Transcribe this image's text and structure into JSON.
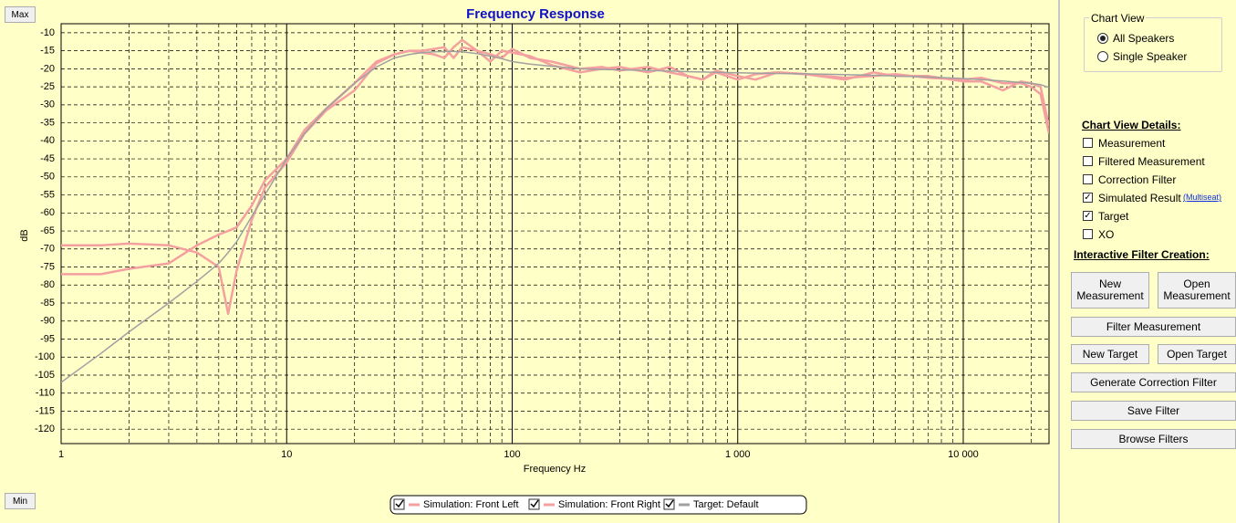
{
  "chart_data": {
    "type": "line",
    "title": "Frequency Response",
    "x_label": "Frequency Hz",
    "y_label": "dB",
    "x_scale": "log",
    "xlim": [
      1,
      24000
    ],
    "ylim": [
      -124,
      -7.5
    ],
    "xticks": [
      1,
      10,
      100,
      {
        "value": 1000,
        "label": "1 000"
      },
      {
        "value": 10000,
        "label": "10 000"
      }
    ],
    "x_minor_ticks": [
      2,
      3,
      4,
      5,
      6,
      7,
      8,
      9,
      20,
      30,
      40,
      50,
      60,
      70,
      80,
      90,
      200,
      300,
      400,
      500,
      600,
      700,
      800,
      900,
      2000,
      3000,
      4000,
      5000,
      6000,
      7000,
      8000,
      9000,
      20000
    ],
    "yticks": [
      -10,
      -15,
      -20,
      -25,
      -30,
      -35,
      -40,
      -45,
      -50,
      -55,
      -60,
      -65,
      -70,
      -75,
      -80,
      -85,
      -90,
      -95,
      -100,
      -105,
      -110,
      -115,
      -120
    ],
    "grid": true,
    "x": [
      1,
      1.5,
      2,
      3,
      4,
      5,
      5.5,
      6,
      7,
      8,
      10,
      12,
      15,
      20,
      25,
      30,
      35,
      40,
      45,
      50,
      55,
      60,
      70,
      80,
      90,
      100,
      120,
      150,
      200,
      250,
      300,
      400,
      500,
      600,
      700,
      800,
      1000,
      1200,
      1500,
      2000,
      3000,
      4000,
      5000,
      7000,
      10000,
      12000,
      15000,
      18000,
      20000,
      22000,
      24000
    ],
    "series": [
      {
        "name": "Simulation: Front Left",
        "color": "#f4a0a0",
        "checked": true,
        "values": [
          -77,
          -77,
          -75.5,
          -74,
          -69,
          -66,
          -65,
          -64,
          -58,
          -51,
          -45,
          -37,
          -31,
          -24,
          -18,
          -16,
          -15,
          -15.5,
          -16,
          -17,
          -14,
          -12,
          -15,
          -16,
          -17,
          -14.5,
          -17,
          -18,
          -20,
          -19.5,
          -20.5,
          -19.5,
          -21,
          -22,
          -23,
          -20.5,
          -22,
          -23,
          -21,
          -21.5,
          -22.5,
          -22,
          -21.5,
          -22.5,
          -23,
          -22.5,
          -24,
          -24,
          -25,
          -27,
          -38
        ]
      },
      {
        "name": "Simulation: Front Right",
        "color": "#f4a0a0",
        "checked": true,
        "values": [
          -69,
          -69,
          -68.5,
          -69,
          -71,
          -75,
          -88,
          -76,
          -62,
          -53,
          -46,
          -38,
          -31.5,
          -26,
          -18.5,
          -16,
          -15,
          -15,
          -14.5,
          -14,
          -17,
          -14,
          -15,
          -18,
          -15,
          -15.5,
          -16.5,
          -19,
          -21,
          -20,
          -19.5,
          -21,
          -19.5,
          -22,
          -23,
          -21,
          -23,
          -21.5,
          -21,
          -21.5,
          -23,
          -21,
          -22,
          -22,
          -23.5,
          -23.5,
          -26,
          -23.5,
          -24,
          -25,
          -36
        ]
      },
      {
        "name": "Target: Default",
        "color": "#a0a0a0",
        "checked": true,
        "values": [
          -107,
          -99,
          -93,
          -85,
          -79,
          -74,
          -71,
          -68,
          -61,
          -55,
          -45,
          -38,
          -31,
          -24,
          -19.5,
          -17,
          -16,
          -15.5,
          -15.3,
          -15.2,
          -15.2,
          -15.3,
          -15.8,
          -16.5,
          -17.2,
          -18,
          -18.7,
          -19.3,
          -20,
          -20.2,
          -20.3,
          -20.5,
          -20.6,
          -20.8,
          -20.9,
          -21,
          -21.1,
          -21.2,
          -21.3,
          -21.4,
          -21.6,
          -21.8,
          -22,
          -22.3,
          -22.7,
          -23,
          -23.4,
          -23.8,
          -24,
          -24.4,
          -25.2
        ]
      }
    ]
  },
  "zoom_buttons": {
    "max": "Max",
    "min": "Min"
  },
  "side_panel": {
    "chart_view": {
      "title": "Chart View",
      "options": [
        {
          "label": "All Speakers",
          "selected": true
        },
        {
          "label": "Single Speaker",
          "selected": false
        }
      ]
    },
    "details_title": "Chart View Details:",
    "details": [
      {
        "label": "Measurement",
        "checked": false
      },
      {
        "label": "Filtered Measurement",
        "checked": false
      },
      {
        "label": "Correction Filter",
        "checked": false
      },
      {
        "label": "Simulated Result",
        "checked": true
      },
      {
        "label": "Target",
        "checked": true
      },
      {
        "label": "XO",
        "checked": false
      }
    ],
    "multiseat_link": "(Multiseat)",
    "filter_title": "Interactive Filter Creation:",
    "buttons": [
      "New Measurement",
      "Open Measurement",
      "Filter Measurement",
      "New Target",
      "Open Target",
      "Generate Correction Filter",
      "Save Filter",
      "Browse Filters"
    ]
  }
}
